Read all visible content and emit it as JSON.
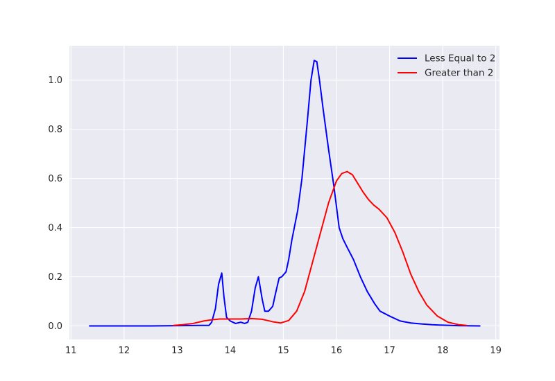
{
  "chart_data": {
    "type": "line",
    "title": "",
    "xlabel": "",
    "ylabel": "",
    "xlim": [
      10.97,
      19.07
    ],
    "ylim": [
      -0.055,
      1.14
    ],
    "x_ticks": [
      11,
      12,
      13,
      14,
      15,
      16,
      17,
      18,
      19
    ],
    "y_ticks": [
      0.0,
      0.2,
      0.4,
      0.6,
      0.8,
      1.0
    ],
    "x_tick_labels": [
      "11",
      "12",
      "13",
      "14",
      "15",
      "16",
      "17",
      "18",
      "19"
    ],
    "y_tick_labels": [
      "0.0",
      "0.2",
      "0.4",
      "0.6",
      "0.8",
      "1.0"
    ],
    "grid": true,
    "legend_position": "top-right",
    "colors": {
      "background": "#eaeaf2",
      "grid": "#ffffff",
      "series_0": "#0000ff",
      "series_1": "#ff0000"
    },
    "series": [
      {
        "name": "Less Equal to 2",
        "color": "#0000ff",
        "x": [
          11.35,
          12.0,
          12.5,
          13.0,
          13.4,
          13.6,
          13.65,
          13.72,
          13.78,
          13.84,
          13.88,
          13.93,
          14.0,
          14.1,
          14.2,
          14.27,
          14.33,
          14.4,
          14.47,
          14.53,
          14.6,
          14.65,
          14.72,
          14.8,
          14.85,
          14.92,
          14.97,
          15.05,
          15.1,
          15.16,
          15.27,
          15.35,
          15.45,
          15.52,
          15.58,
          15.63,
          15.68,
          15.75,
          15.85,
          15.95,
          16.05,
          16.12,
          16.2,
          16.32,
          16.45,
          16.58,
          16.72,
          16.82,
          17.0,
          17.2,
          17.4,
          17.6,
          17.8,
          18.0,
          18.3,
          18.7
        ],
        "values": [
          0.0,
          0.0,
          0.0,
          0.001,
          0.002,
          0.002,
          0.015,
          0.07,
          0.17,
          0.215,
          0.12,
          0.035,
          0.02,
          0.01,
          0.015,
          0.01,
          0.015,
          0.06,
          0.155,
          0.2,
          0.11,
          0.06,
          0.06,
          0.08,
          0.13,
          0.195,
          0.2,
          0.22,
          0.27,
          0.35,
          0.47,
          0.6,
          0.83,
          1.0,
          1.08,
          1.075,
          1.0,
          0.88,
          0.72,
          0.57,
          0.4,
          0.355,
          0.32,
          0.27,
          0.2,
          0.14,
          0.09,
          0.06,
          0.04,
          0.02,
          0.012,
          0.008,
          0.005,
          0.003,
          0.001,
          0.0
        ]
      },
      {
        "name": "Greater than 2",
        "color": "#ff0000",
        "x": [
          12.93,
          13.1,
          13.3,
          13.5,
          13.65,
          13.8,
          14.0,
          14.2,
          14.4,
          14.6,
          14.8,
          14.95,
          15.1,
          15.25,
          15.4,
          15.55,
          15.7,
          15.85,
          16.0,
          16.1,
          16.2,
          16.3,
          16.4,
          16.5,
          16.6,
          16.7,
          16.8,
          16.95,
          17.1,
          17.25,
          17.4,
          17.55,
          17.7,
          17.9,
          18.1,
          18.3,
          18.45
        ],
        "values": [
          0.002,
          0.005,
          0.01,
          0.02,
          0.025,
          0.028,
          0.028,
          0.028,
          0.03,
          0.027,
          0.017,
          0.012,
          0.022,
          0.06,
          0.14,
          0.26,
          0.38,
          0.5,
          0.59,
          0.62,
          0.628,
          0.615,
          0.58,
          0.545,
          0.515,
          0.492,
          0.475,
          0.44,
          0.38,
          0.3,
          0.21,
          0.14,
          0.085,
          0.04,
          0.015,
          0.005,
          0.002
        ]
      }
    ]
  }
}
